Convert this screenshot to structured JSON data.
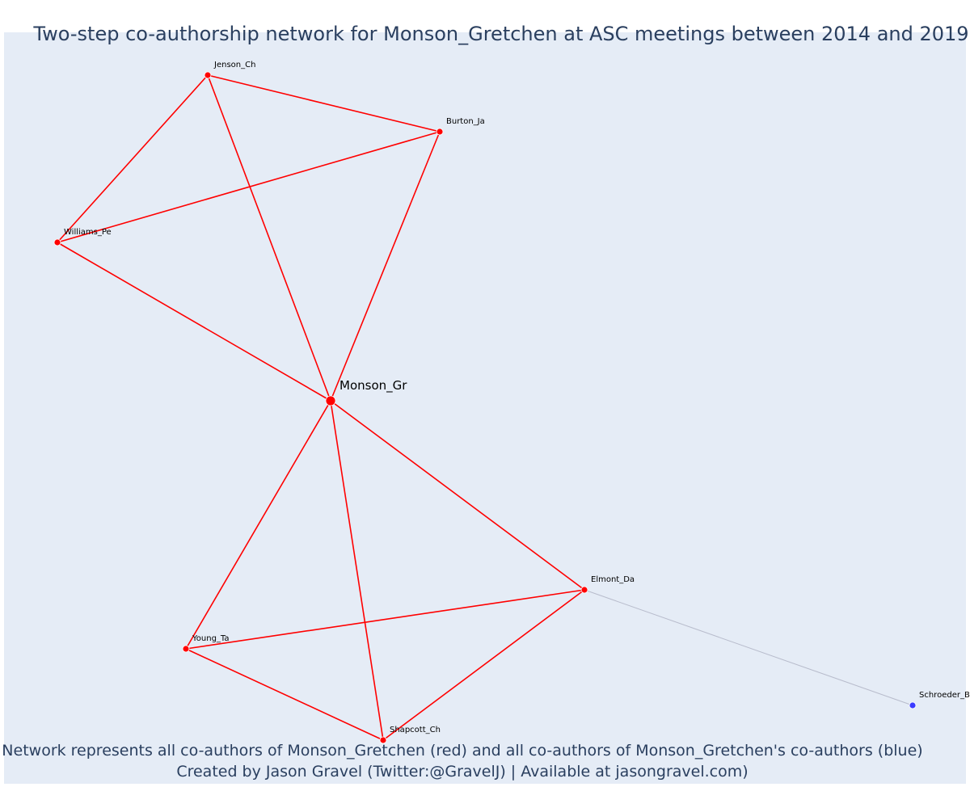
{
  "title": "Two-step co-authorship network for Monson_Gretchen at ASC meetings between 2014 and 2019",
  "caption_line1": "Network represents all co-authors of Monson_Gretchen (red) and all co-authors of Monson_Gretchen's co-authors (blue)",
  "caption_line2": "Created by Jason Gravel (Twitter:@GravelJ) | Available at jasongravel.com)",
  "colors": {
    "background": "#e5ecf6",
    "first_degree": "#ff0000",
    "second_degree": "#3b3bff",
    "second_degree_edge": "#b8bccc",
    "text": "#2a3f5f"
  },
  "nodes": [
    {
      "id": "monson",
      "label": "Monson_Gr",
      "group": "focal"
    },
    {
      "id": "jenson",
      "label": "Jenson_Ch",
      "group": "first"
    },
    {
      "id": "burton",
      "label": "Burton_Ja",
      "group": "first"
    },
    {
      "id": "williams",
      "label": "Williams_Pe",
      "group": "first"
    },
    {
      "id": "elmont",
      "label": "Elmont_Da",
      "group": "first"
    },
    {
      "id": "young",
      "label": "Young_Ta",
      "group": "first"
    },
    {
      "id": "shapcott",
      "label": "Shapcott_Ch",
      "group": "first"
    },
    {
      "id": "schroeder",
      "label": "Schroeder_B",
      "group": "second"
    }
  ],
  "edges": [
    {
      "source": "jenson",
      "target": "burton",
      "group": "first"
    },
    {
      "source": "jenson",
      "target": "williams",
      "group": "first"
    },
    {
      "source": "jenson",
      "target": "monson",
      "group": "first"
    },
    {
      "source": "burton",
      "target": "williams",
      "group": "first"
    },
    {
      "source": "burton",
      "target": "monson",
      "group": "first"
    },
    {
      "source": "williams",
      "target": "monson",
      "group": "first"
    },
    {
      "source": "monson",
      "target": "elmont",
      "group": "first"
    },
    {
      "source": "monson",
      "target": "young",
      "group": "first"
    },
    {
      "source": "monson",
      "target": "shapcott",
      "group": "first"
    },
    {
      "source": "elmont",
      "target": "young",
      "group": "first"
    },
    {
      "source": "elmont",
      "target": "shapcott",
      "group": "first"
    },
    {
      "source": "young",
      "target": "shapcott",
      "group": "first"
    },
    {
      "source": "elmont",
      "target": "schroeder",
      "group": "second"
    }
  ]
}
